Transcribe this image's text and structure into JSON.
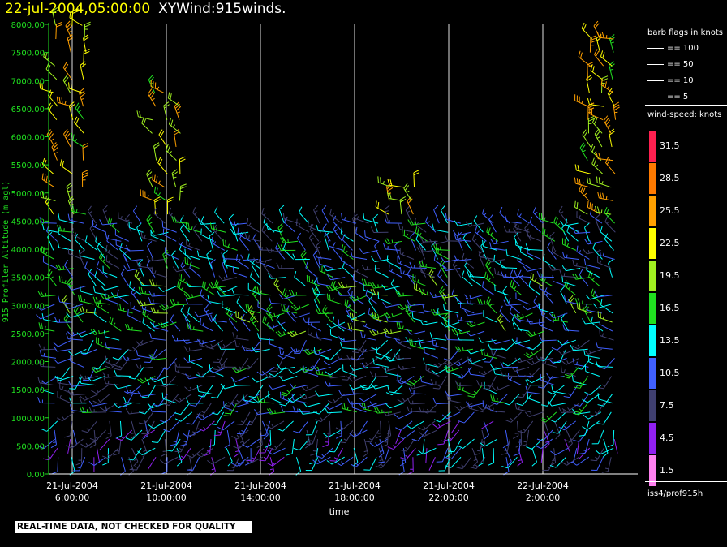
{
  "header": {
    "date": "22-jul-2004,05:00:00",
    "product": "XYWind:915winds."
  },
  "legend": {
    "barb_title": "barb flags in knots",
    "barb_items": [
      "== 100",
      "== 50",
      "== 10",
      "== 5"
    ],
    "speed_title": "wind-speed: knots",
    "speed_levels": [
      {
        "label": "31.5",
        "color": "#ff2050"
      },
      {
        "label": "28.5",
        "color": "#ff7a00"
      },
      {
        "label": "25.5",
        "color": "#ffa000"
      },
      {
        "label": "22.5",
        "color": "#ffff00"
      },
      {
        "label": "19.5",
        "color": "#a0f020"
      },
      {
        "label": "16.5",
        "color": "#20e020"
      },
      {
        "label": "13.5",
        "color": "#00ffff"
      },
      {
        "label": "10.5",
        "color": "#4060ff"
      },
      {
        "label": "7.5",
        "color": "#404070"
      },
      {
        "label": "4.5",
        "color": "#9020f0"
      },
      {
        "label": "1.5",
        "color": "#ff80f0"
      }
    ],
    "source": "iss4/prof915h"
  },
  "banner": "REAL-TIME DATA, NOT CHECKED FOR QUALITY",
  "chart_data": {
    "type": "scatter",
    "ylabel": "915 Profiler Altitude (m agl)",
    "xlabel": "time",
    "ylim": [
      0,
      8000
    ],
    "y_ticks": [
      "0.00",
      "500.00",
      "1000.00",
      "1500.00",
      "2000.00",
      "2500.00",
      "3000.00",
      "3500.00",
      "4000.00",
      "4500.00",
      "5000.00",
      "5500.00",
      "6000.00",
      "6500.00",
      "7000.00",
      "7500.00",
      "8000.00"
    ],
    "x_ticks": [
      {
        "date": "21-Jul-2004",
        "time": "6:00:00",
        "hour": 6
      },
      {
        "date": "21-Jul-2004",
        "time": "10:00:00",
        "hour": 10
      },
      {
        "date": "21-Jul-2004",
        "time": "14:00:00",
        "hour": 14
      },
      {
        "date": "21-Jul-2004",
        "time": "18:00:00",
        "hour": 18
      },
      {
        "date": "21-Jul-2004",
        "time": "22:00:00",
        "hour": 22
      },
      {
        "date": "22-Jul-2004",
        "time": "2:00:00",
        "hour": 26
      }
    ],
    "xlim_hours": [
      5.0,
      29.0
    ],
    "gridlines": "vertical",
    "barb_columns_hours": [
      5.3,
      6.0,
      6.5,
      7.0,
      7.5,
      8.0,
      8.5,
      9.0,
      9.5,
      10.0,
      10.5,
      11.0,
      11.5,
      12.0,
      12.5,
      13.0,
      13.5,
      14.0,
      14.5,
      15.0,
      15.5,
      16.0,
      16.5,
      17.0,
      17.5,
      18.0,
      18.5,
      19.0,
      19.5,
      20.0,
      20.5,
      21.0,
      21.5,
      22.0,
      22.5,
      23.0,
      23.5,
      24.0,
      24.5,
      25.0,
      25.5,
      26.0,
      26.5,
      27.0,
      27.5,
      28.0,
      28.5,
      29.0
    ],
    "wind_profiles": [
      {
        "alt_range": [
          0,
          1000
        ],
        "dir_deg": 200,
        "speed_kt": 9
      },
      {
        "alt_range": [
          1000,
          2500
        ],
        "dir_deg": 250,
        "speed_kt": 11
      },
      {
        "alt_range": [
          2500,
          3500
        ],
        "dir_deg": 290,
        "speed_kt": 14
      },
      {
        "alt_range": [
          3500,
          4500
        ],
        "dir_deg": 300,
        "speed_kt": 11
      },
      {
        "alt_range": [
          4500,
          8000
        ],
        "dir_deg": 320,
        "speed_kt": 22
      }
    ]
  }
}
